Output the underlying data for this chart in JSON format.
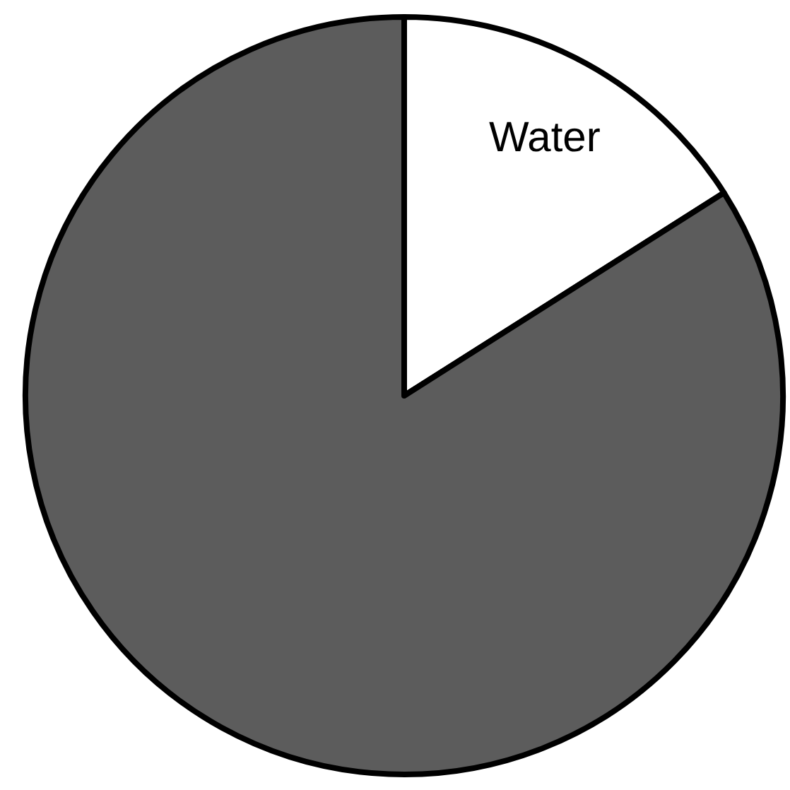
{
  "chart_data": {
    "type": "pie",
    "categories": [
      "Water",
      null
    ],
    "values": [
      16,
      84
    ],
    "colors": [
      "#ffffff",
      "#5c5c5c"
    ]
  }
}
